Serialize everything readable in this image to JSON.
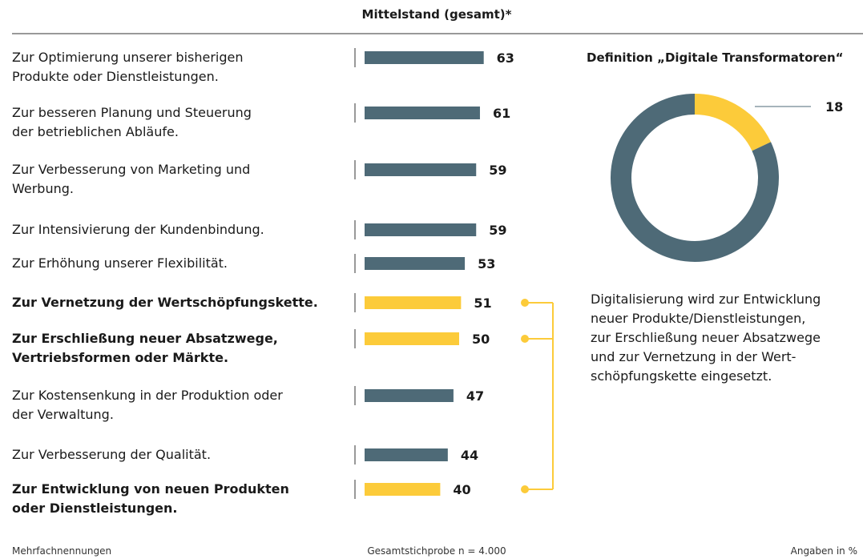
{
  "chart_data": [
    {
      "type": "bar",
      "title": "Mittelstand (gesamt)*",
      "categories": [
        "Zur Optimierung unserer bisherigen\nProdukte oder Dienstleistungen.",
        "Zur besseren Planung und Steuerung\nder betrieblichen Abläufe.",
        "Zur Verbesserung von Marketing und\nWerbung.",
        "Zur Intensivierung der Kundenbindung.",
        "Zur Erhöhung unserer Flexibilität.",
        "Zur Vernetzung der Wertschöpfungskette.",
        "Zur Erschließung neuer Absatzwege,\nVertriebsformen oder Märkte.",
        "Zur Kostensenkung in der Produktion oder\nder Verwaltung.",
        "Zur Verbesserung der Qualität.",
        "Zur Entwicklung von neuen Produkten\noder Dienstleistungen."
      ],
      "values": [
        63,
        61,
        59,
        59,
        53,
        51,
        50,
        47,
        44,
        40
      ],
      "color": "#4e6a77",
      "highlight_color": "#fccb3a",
      "colors": [
        "#4e6a77",
        "#4e6a77",
        "#4e6a77",
        "#4e6a77",
        "#4e6a77",
        "#fccb3a",
        "#fccb3a",
        "#4e6a77",
        "#4e6a77",
        "#fccb3a"
      ]
    },
    {
      "type": "pie",
      "title": "Definition „Digitale Transformatoren“",
      "values": [
        18,
        82
      ],
      "colors": [
        "#fccb3a",
        "#4e6a77"
      ],
      "description": "Digitalisierung wird zur Entwicklung\nneuer Produkte/Dienstleistungen,\nzur Erschließung neuer Absatzwege\nund zur Vernetzung in der Wert-\nschöpfungskette eingesetzt."
    }
  ],
  "footer": {
    "left": "Mehrfachnennungen",
    "center": "Gesamtstichprobe n = 4.000",
    "right": "Angaben in %"
  }
}
